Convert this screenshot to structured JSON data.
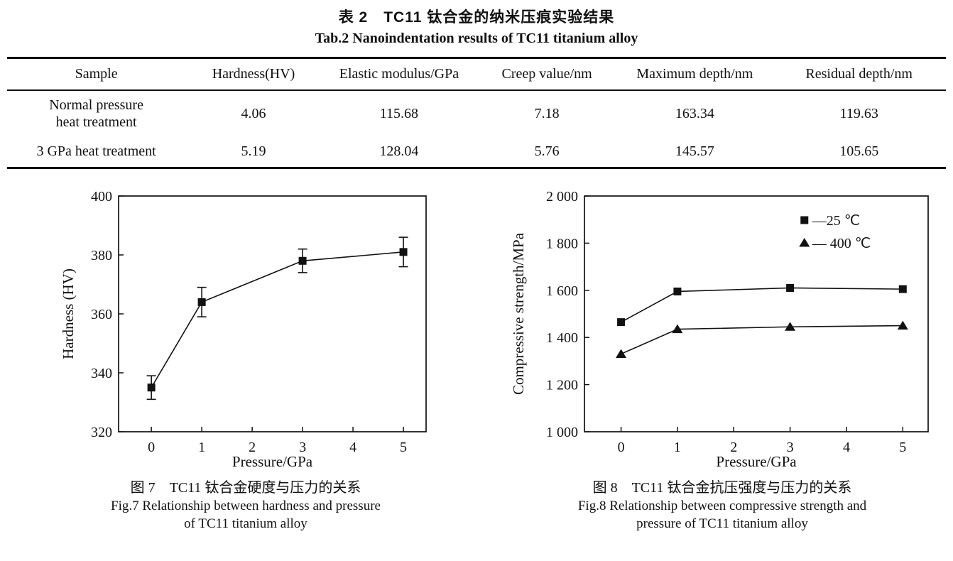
{
  "page": {
    "title_zh": "表 2　TC11 钛合金的纳米压痕实验结果",
    "title_en": "Tab.2 Nanoindentation results of TC11 titanium alloy"
  },
  "table": {
    "columns": [
      "Sample",
      "Hardness(HV)",
      "Elastic modulus/GPa",
      "Creep value/nm",
      "Maximum depth/nm",
      "Residual depth/nm"
    ],
    "rows": [
      {
        "sample": [
          "Normal pressure",
          "heat treatment"
        ],
        "values": [
          "4.06",
          "115.68",
          "7.18",
          "163.34",
          "119.63"
        ]
      },
      {
        "sample": [
          "3 GPa heat treatment"
        ],
        "values": [
          "5.19",
          "128.04",
          "5.76",
          "145.57",
          "105.65"
        ]
      }
    ]
  },
  "chart_data": [
    {
      "type": "line",
      "figure": "Fig.7",
      "title": "",
      "xlabel": "Pressure/GPa",
      "ylabel": "Hardness (HV)",
      "x": [
        0,
        1,
        3,
        5
      ],
      "series": [
        {
          "name": "hardness",
          "marker": "square",
          "values": [
            335,
            364,
            378,
            381
          ],
          "yerr": [
            4,
            5,
            4,
            5
          ]
        }
      ],
      "xlim": [
        -0.65,
        5.45
      ],
      "ylim": [
        320,
        400
      ],
      "xticks": [
        0,
        1,
        2,
        3,
        4,
        5
      ],
      "xtick_labels": [
        "0",
        "1",
        "2",
        "3",
        "4",
        "5"
      ],
      "yticks": [
        320,
        340,
        360,
        380,
        400
      ],
      "ytick_labels": [
        "320",
        "340",
        "360",
        "380",
        "400"
      ],
      "grid": false,
      "legend": null
    },
    {
      "type": "line",
      "figure": "Fig.8",
      "title": "",
      "xlabel": "Pressure/GPa",
      "ylabel": "Compressive strength/MPa",
      "x": [
        0,
        1,
        3,
        5
      ],
      "series": [
        {
          "name": "25 ℃",
          "marker": "square",
          "values": [
            1465,
            1595,
            1610,
            1605
          ]
        },
        {
          "name": "400 ℃",
          "marker": "triangle",
          "values": [
            1330,
            1435,
            1445,
            1450
          ]
        }
      ],
      "xlim": [
        -0.65,
        5.45
      ],
      "ylim": [
        1000,
        2000
      ],
      "xticks": [
        0,
        1,
        2,
        3,
        4,
        5
      ],
      "xtick_labels": [
        "0",
        "1",
        "2",
        "3",
        "4",
        "5"
      ],
      "yticks": [
        1000,
        1200,
        1400,
        1600,
        1800,
        2000
      ],
      "ytick_labels": [
        "1 000",
        "1 200",
        "1 400",
        "1 600",
        "1 800",
        "2 000"
      ],
      "grid": false,
      "legend": {
        "position": "top-right",
        "entries": [
          {
            "marker": "square",
            "label": "—25 ℃"
          },
          {
            "marker": "triangle",
            "label": "— 400 ℃"
          }
        ]
      }
    }
  ],
  "captions": {
    "fig7_zh": "图 7　TC11 钛合金硬度与压力的关系",
    "fig7_en": [
      "Fig.7 Relationship between hardness and pressure",
      "of TC11 titanium alloy"
    ],
    "fig8_zh": "图 8　TC11 钛合金抗压强度与压力的关系",
    "fig8_en": [
      "Fig.8 Relationship between compressive strength and",
      "pressure of TC11 titanium alloy"
    ]
  },
  "colors": {
    "ink": "#111111",
    "background": "#ffffff"
  }
}
